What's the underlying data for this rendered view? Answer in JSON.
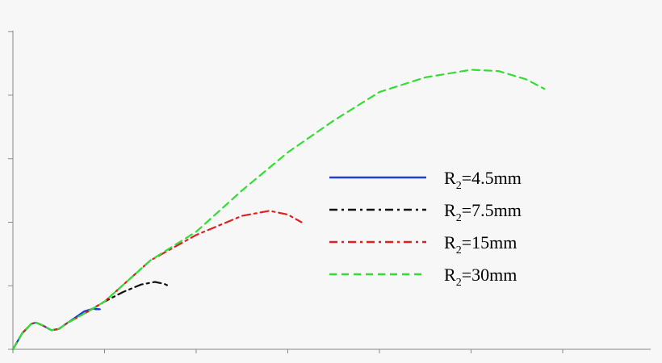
{
  "chart_data": {
    "type": "line",
    "title": "",
    "xlabel": "",
    "ylabel": "",
    "xlim": [
      0,
      7
    ],
    "ylim": [
      0,
      5
    ],
    "x_ticks": [
      0,
      1,
      2,
      3,
      4,
      5,
      6,
      7
    ],
    "y_ticks": [
      0,
      1,
      2,
      3,
      4,
      5
    ],
    "grid": false,
    "legend_position": "right",
    "series": [
      {
        "name": "R2=4.5mm",
        "label_main": "R",
        "label_sub": "2",
        "label_rest": "=4.5mm",
        "color": "#1f3fdc",
        "dash": "solid",
        "points": [
          [
            0,
            0
          ],
          [
            0.1,
            0.25
          ],
          [
            0.2,
            0.4
          ],
          [
            0.25,
            0.42
          ],
          [
            0.32,
            0.38
          ],
          [
            0.42,
            0.3
          ],
          [
            0.5,
            0.32
          ],
          [
            0.6,
            0.42
          ],
          [
            0.7,
            0.52
          ],
          [
            0.78,
            0.6
          ],
          [
            0.88,
            0.64
          ],
          [
            0.95,
            0.63
          ],
          [
            0.9,
            0.63
          ]
        ]
      },
      {
        "name": "R2=7.5mm",
        "label_main": "R",
        "label_sub": "2",
        "label_rest": "=7.5mm",
        "color": "#111111",
        "dash": "dashdot",
        "points": [
          [
            0,
            0
          ],
          [
            0.1,
            0.25
          ],
          [
            0.2,
            0.4
          ],
          [
            0.25,
            0.42
          ],
          [
            0.32,
            0.38
          ],
          [
            0.42,
            0.3
          ],
          [
            0.5,
            0.32
          ],
          [
            0.6,
            0.42
          ],
          [
            0.8,
            0.58
          ],
          [
            1,
            0.75
          ],
          [
            1.2,
            0.9
          ],
          [
            1.4,
            1.02
          ],
          [
            1.55,
            1.06
          ],
          [
            1.65,
            1.03
          ],
          [
            1.7,
            1.0
          ]
        ]
      },
      {
        "name": "R2=15mm",
        "label_main": "R",
        "label_sub": "2",
        "label_rest": "=15mm",
        "color": "#e02020",
        "dash": "dashdot",
        "points": [
          [
            0,
            0
          ],
          [
            0.1,
            0.25
          ],
          [
            0.2,
            0.4
          ],
          [
            0.25,
            0.42
          ],
          [
            0.32,
            0.38
          ],
          [
            0.42,
            0.3
          ],
          [
            0.5,
            0.32
          ],
          [
            0.6,
            0.42
          ],
          [
            0.8,
            0.58
          ],
          [
            1,
            0.75
          ],
          [
            1.5,
            1.4
          ],
          [
            2,
            1.8
          ],
          [
            2.5,
            2.1
          ],
          [
            2.8,
            2.18
          ],
          [
            3.0,
            2.12
          ],
          [
            3.15,
            2.0
          ]
        ]
      },
      {
        "name": "R2=30mm",
        "label_main": "R",
        "label_sub": "2",
        "label_rest": "=30mm",
        "color": "#33dd33",
        "dash": "dashed",
        "points": [
          [
            0,
            0
          ],
          [
            0.1,
            0.25
          ],
          [
            0.2,
            0.4
          ],
          [
            0.25,
            0.42
          ],
          [
            0.32,
            0.38
          ],
          [
            0.42,
            0.3
          ],
          [
            0.5,
            0.32
          ],
          [
            0.6,
            0.42
          ],
          [
            0.8,
            0.58
          ],
          [
            1,
            0.75
          ],
          [
            1.5,
            1.4
          ],
          [
            2,
            1.85
          ],
          [
            2.5,
            2.5
          ],
          [
            3,
            3.1
          ],
          [
            3.5,
            3.6
          ],
          [
            4,
            4.05
          ],
          [
            4.5,
            4.28
          ],
          [
            5,
            4.4
          ],
          [
            5.3,
            4.38
          ],
          [
            5.6,
            4.25
          ],
          [
            5.8,
            4.1
          ]
        ]
      }
    ]
  }
}
